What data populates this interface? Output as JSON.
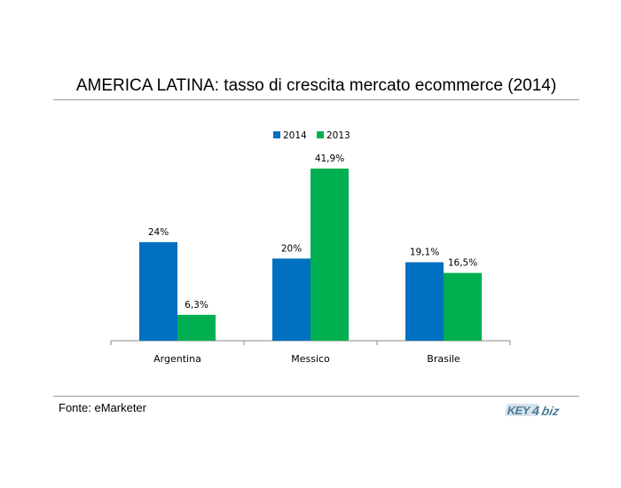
{
  "chart_data": {
    "type": "bar",
    "title": "AMERICA LATINA: tasso di crescita mercato ecommerce (2014)",
    "categories": [
      "Argentina",
      "Messico",
      "Brasile"
    ],
    "series": [
      {
        "name": "2014",
        "values": [
          24,
          20,
          19.1
        ],
        "labels": [
          "24%",
          "20%",
          "19,1%"
        ],
        "color": "#0070c0"
      },
      {
        "name": "2013",
        "values": [
          6.3,
          41.9,
          16.5
        ],
        "labels": [
          "6,3%",
          "41,9%",
          "16,5%"
        ],
        "color": "#00b050"
      }
    ],
    "ylim": [
      0,
      45
    ],
    "legend": "top-center",
    "grid": false
  },
  "footer": {
    "source": "Fonte: eMarketer",
    "logo_text": "KEY4biz",
    "logo_color": "#4a7a9a"
  }
}
